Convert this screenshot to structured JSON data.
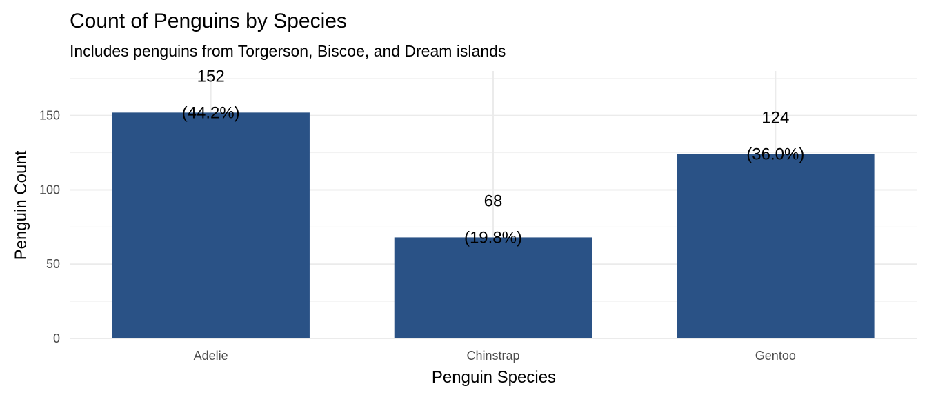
{
  "chart_data": {
    "type": "bar",
    "title": "Count of Penguins by Species",
    "subtitle": "Includes penguins from Torgerson, Biscoe, and Dream islands",
    "xlabel": "Penguin Species",
    "ylabel": "Penguin Count",
    "categories": [
      "Adelie",
      "Chinstrap",
      "Gentoo"
    ],
    "values": [
      152,
      68,
      124
    ],
    "value_labels": [
      "152",
      "68",
      "124"
    ],
    "percent_labels": [
      "(44.2%)",
      "(19.8%)",
      "(36.0%)"
    ],
    "ylim": [
      0,
      180
    ],
    "yticks": [
      0,
      50,
      100,
      150
    ],
    "ytick_labels": [
      "0",
      "50",
      "100",
      "150"
    ],
    "grid": true,
    "legend": "none",
    "colors": {
      "bar": "#2a5286",
      "grid_major": "#ebebeb",
      "grid_minor": "#f2f2f2",
      "tick_text": "#4d4d4d",
      "text": "#000000"
    }
  }
}
